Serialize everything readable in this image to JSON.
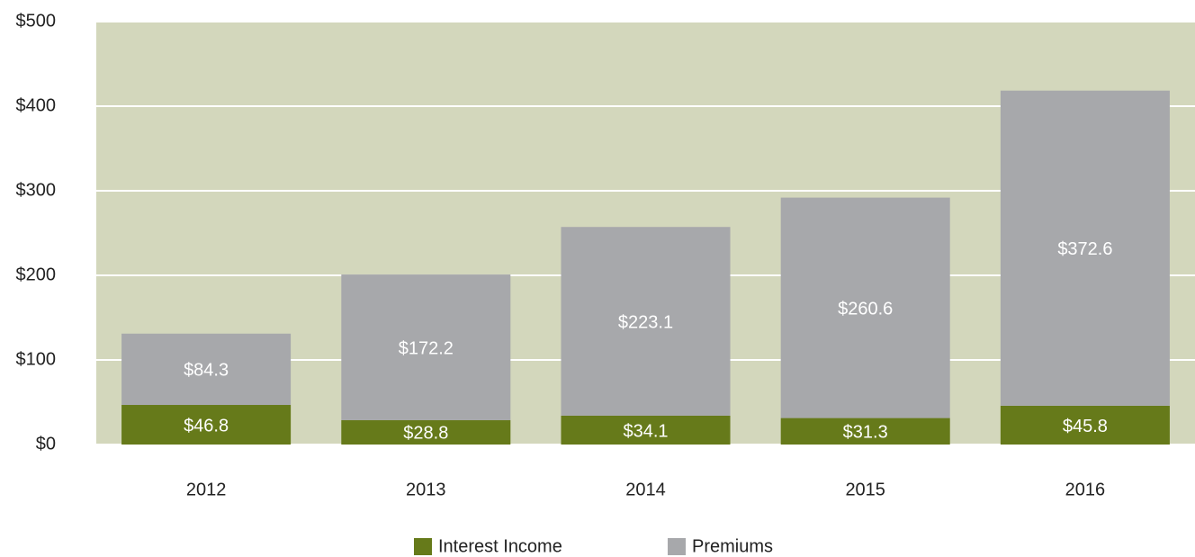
{
  "chart_data": {
    "type": "stacked_bar",
    "categories": [
      "2012",
      "2013",
      "2014",
      "2015",
      "2016"
    ],
    "series": [
      {
        "name": "Interest Income",
        "color": "#667a1a",
        "values": [
          46.8,
          28.8,
          34.1,
          31.3,
          45.8
        ],
        "value_labels": [
          "$46.8",
          "$28.8",
          "$34.1",
          "$31.3",
          "$45.8"
        ]
      },
      {
        "name": "Premiums",
        "color": "#a7a8ab",
        "values": [
          84.3,
          172.2,
          223.1,
          260.6,
          372.6
        ],
        "value_labels": [
          "$84.3",
          "$172.2",
          "$223.1",
          "$260.6",
          "$372.6"
        ]
      }
    ],
    "ylim": [
      0,
      500
    ],
    "yticks": [
      {
        "value": 0,
        "label": "$0"
      },
      {
        "value": 100,
        "label": "$100"
      },
      {
        "value": 200,
        "label": "$200"
      },
      {
        "value": 300,
        "label": "$300"
      },
      {
        "value": 400,
        "label": "$400"
      },
      {
        "value": 500,
        "label": "$500"
      }
    ],
    "grid": true,
    "plot_background": "#d3d7bc",
    "legend": "bottom"
  }
}
